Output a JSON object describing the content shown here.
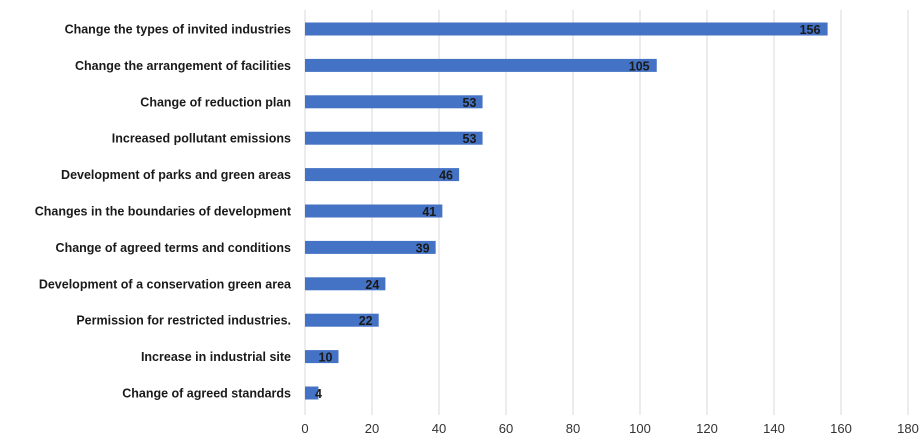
{
  "chart_data": {
    "type": "bar",
    "orientation": "horizontal",
    "categories": [
      "Change the types of invited industries",
      "Change the arrangement of facilities",
      "Change of reduction plan",
      "Increased pollutant emissions",
      "Development of parks and green areas",
      "Changes in the boundaries of development",
      "Change of agreed terms and conditions",
      "Development of a conservation green area",
      "Permission for restricted industries.",
      "Increase in industrial site",
      "Change of agreed standards"
    ],
    "values": [
      156,
      105,
      53,
      53,
      46,
      41,
      39,
      24,
      22,
      10,
      4
    ],
    "xlim": [
      0,
      180
    ],
    "xticks": [
      0,
      20,
      40,
      60,
      80,
      100,
      120,
      140,
      160,
      180
    ],
    "title": "",
    "xlabel": "",
    "ylabel": "",
    "grid": "vertical",
    "bar_color": "#4472c4",
    "grid_color": "#d9d9d9",
    "data_labels": "inside-end"
  }
}
